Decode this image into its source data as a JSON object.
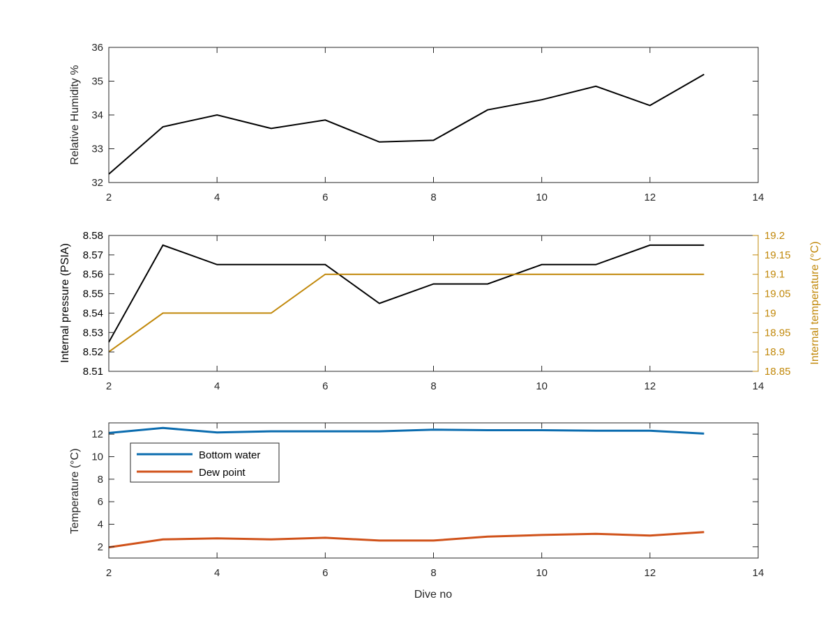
{
  "figure": {
    "xlabel": "Dive no"
  },
  "colors": {
    "black": "#000000",
    "gold": "#C1880A",
    "blue": "#0B6CAF",
    "orange": "#D0521A",
    "axis": "#262626"
  },
  "chart_data": [
    {
      "type": "line",
      "ylabel": "Relative Humidity %",
      "xlim": [
        2,
        14
      ],
      "ylim": [
        32,
        36
      ],
      "xticks": [
        "2",
        "4",
        "6",
        "8",
        "10",
        "12",
        "14"
      ],
      "yticks": [
        "32",
        "33",
        "34",
        "35",
        "36"
      ],
      "x": [
        2,
        3,
        4,
        5,
        6,
        7,
        8,
        9,
        10,
        11,
        12,
        13
      ],
      "series": [
        {
          "values": [
            32.25,
            33.65,
            34.0,
            33.6,
            33.85,
            33.2,
            33.25,
            34.15,
            34.45,
            34.85,
            34.28,
            35.2
          ],
          "color": "#000000"
        }
      ]
    },
    {
      "type": "line",
      "ylabel": "Internal pressure (PSIA)",
      "ylabel_right": "Internal temperature (°C)",
      "xlim": [
        2,
        14
      ],
      "ylim": [
        8.51,
        8.58
      ],
      "ylim_right": [
        18.85,
        19.2
      ],
      "xticks": [
        "2",
        "4",
        "6",
        "8",
        "10",
        "12",
        "14"
      ],
      "yticks": [
        "8.51",
        "8.52",
        "8.53",
        "8.54",
        "8.55",
        "8.56",
        "8.57",
        "8.58"
      ],
      "yticks_right": [
        "18.85",
        "18.9",
        "18.95",
        "19",
        "19.05",
        "19.1",
        "19.15",
        "19.2"
      ],
      "x": [
        2,
        3,
        4,
        5,
        6,
        7,
        8,
        9,
        10,
        11,
        12,
        13
      ],
      "series": [
        {
          "axis": "left",
          "values": [
            8.525,
            8.575,
            8.565,
            8.565,
            8.565,
            8.545,
            8.555,
            8.555,
            8.565,
            8.565,
            8.575,
            8.575
          ],
          "color": "#000000"
        },
        {
          "axis": "right",
          "values": [
            18.9,
            19.0,
            19.0,
            19.0,
            19.1,
            19.1,
            19.1,
            19.1,
            19.1,
            19.1,
            19.1,
            19.1
          ],
          "color": "#C1880A"
        }
      ]
    },
    {
      "type": "line",
      "ylabel": "Temperature (°C)",
      "xlim": [
        2,
        14
      ],
      "ylim": [
        1,
        13
      ],
      "xticks": [
        "2",
        "4",
        "6",
        "8",
        "10",
        "12",
        "14"
      ],
      "yticks": [
        "2",
        "4",
        "6",
        "8",
        "10",
        "12"
      ],
      "x": [
        2,
        3,
        4,
        5,
        6,
        7,
        8,
        9,
        10,
        11,
        12,
        13
      ],
      "legend": "top-left",
      "series": [
        {
          "name": "Bottom water",
          "values": [
            12.1,
            12.55,
            12.15,
            12.25,
            12.25,
            12.25,
            12.4,
            12.35,
            12.35,
            12.3,
            12.3,
            12.05
          ],
          "color": "#0B6CAF"
        },
        {
          "name": "Dew point",
          "values": [
            1.95,
            2.65,
            2.75,
            2.65,
            2.8,
            2.55,
            2.55,
            2.9,
            3.05,
            3.15,
            3.0,
            3.3
          ],
          "color": "#D0521A"
        }
      ]
    }
  ]
}
